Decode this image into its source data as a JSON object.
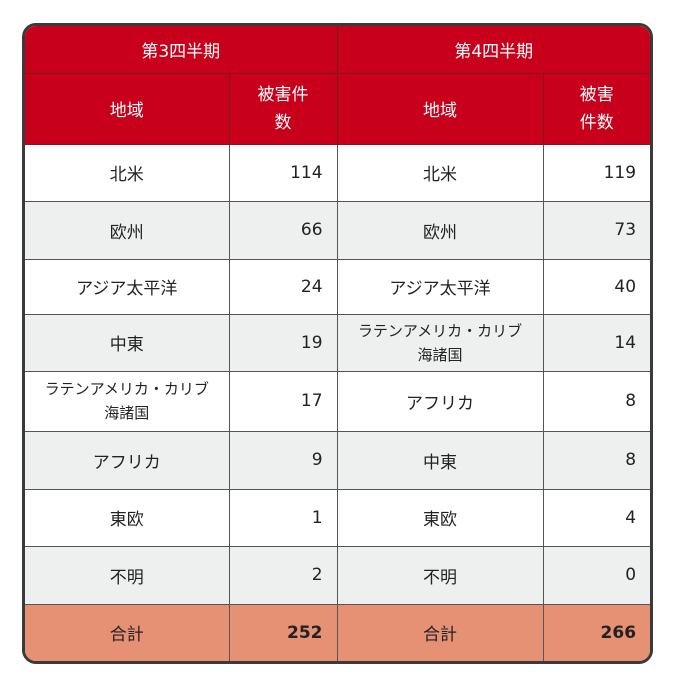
{
  "quarters": [
    {
      "title": "第3四半期",
      "col_region": "地域",
      "col_count": "被害件数",
      "rows": [
        [
          "北米",
          "114"
        ],
        [
          "欧州",
          "66"
        ],
        [
          "アジア太平洋",
          "24"
        ],
        [
          "中東",
          "19"
        ],
        [
          "ラテンアメリカ・カリブ海諸国",
          "17"
        ],
        [
          "アフリカ",
          "9"
        ],
        [
          "東欧",
          "1"
        ],
        [
          "不明",
          "2"
        ]
      ],
      "total_label": "合計",
      "total": "252"
    },
    {
      "title": "第4四半期",
      "col_region": "地域",
      "col_count": "被害件数",
      "rows": [
        [
          "北米",
          "119"
        ],
        [
          "欧州",
          "73"
        ],
        [
          "アジア太平洋",
          "40"
        ],
        [
          "ラテンアメリカ・カリブ海諸国",
          "14"
        ],
        [
          "アフリカ",
          "8"
        ],
        [
          "中東",
          "8"
        ],
        [
          "東欧",
          "4"
        ],
        [
          "不明",
          "0"
        ]
      ],
      "total_label": "合計",
      "total": "266"
    }
  ],
  "colors": {
    "header": "#c8001b",
    "total_row": "#e69074",
    "alt_row": "#eef0ef"
  }
}
